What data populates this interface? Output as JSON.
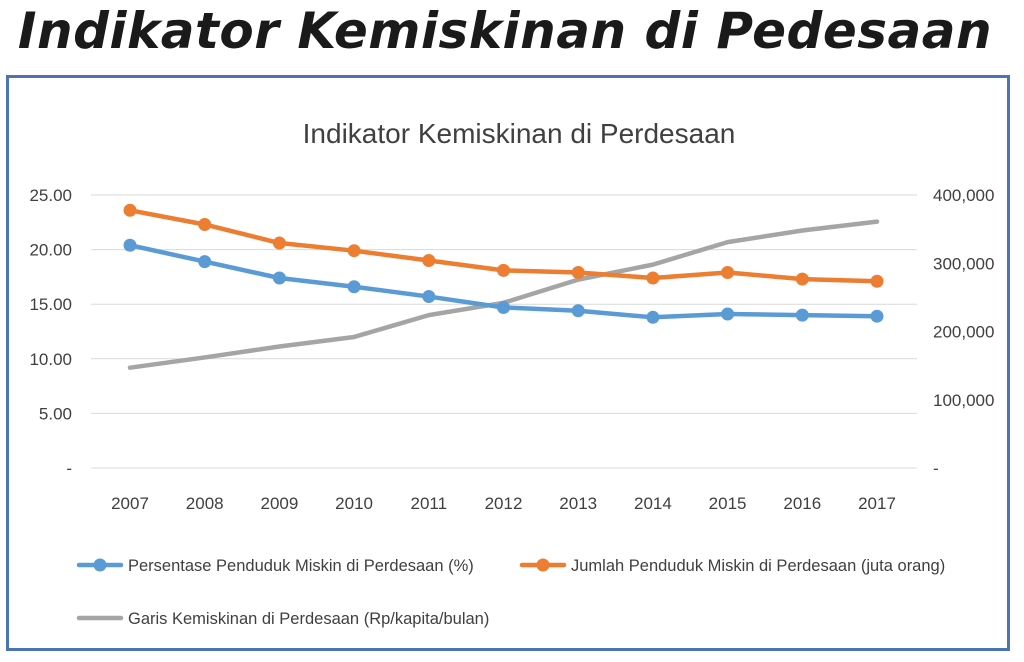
{
  "page": {
    "title": "Indikator Kemiskinan di Pedesaan",
    "frame_color": "#4a74b4"
  },
  "chart_data": {
    "type": "line",
    "title": "Indikator Kemiskinan di Perdesaan",
    "xlabel": "",
    "ylabel": "",
    "categories": [
      "2007",
      "2008",
      "2009",
      "2010",
      "2011",
      "2012",
      "2013",
      "2014",
      "2015",
      "2016",
      "2017"
    ],
    "y_left": {
      "min": 0,
      "max": 25,
      "ticks": [
        "-",
        "5.00",
        "10.00",
        "15.00",
        "20.00",
        "25.00"
      ]
    },
    "y_right": {
      "min": 0,
      "max": 400000,
      "ticks": [
        "-",
        "100,000",
        "200,000",
        "300,000",
        "400,000"
      ]
    },
    "grid": true,
    "legend_position": "bottom",
    "series": [
      {
        "name": "Persentase Penduduk Miskin di Perdesaan (%)",
        "axis": "left",
        "color": "#5b9bd5",
        "markers": true,
        "values": [
          20.4,
          18.9,
          17.4,
          16.6,
          15.7,
          14.7,
          14.4,
          13.8,
          14.1,
          14.0,
          13.9
        ]
      },
      {
        "name": "Jumlah Penduduk Miskin di Perdesaan (juta orang)",
        "axis": "left",
        "color": "#ed7d31",
        "markers": true,
        "values": [
          23.6,
          22.3,
          20.6,
          19.9,
          19.0,
          18.1,
          17.9,
          17.4,
          17.9,
          17.3,
          17.1
        ]
      },
      {
        "name": "Garis Kemiskinan di Perdesaan (Rp/kapita/bulan)",
        "axis": "right",
        "color": "#a5a5a5",
        "markers": false,
        "values": [
          147000,
          162000,
          178000,
          192000,
          224000,
          242000,
          276000,
          298000,
          331000,
          348000,
          361000
        ]
      }
    ]
  }
}
